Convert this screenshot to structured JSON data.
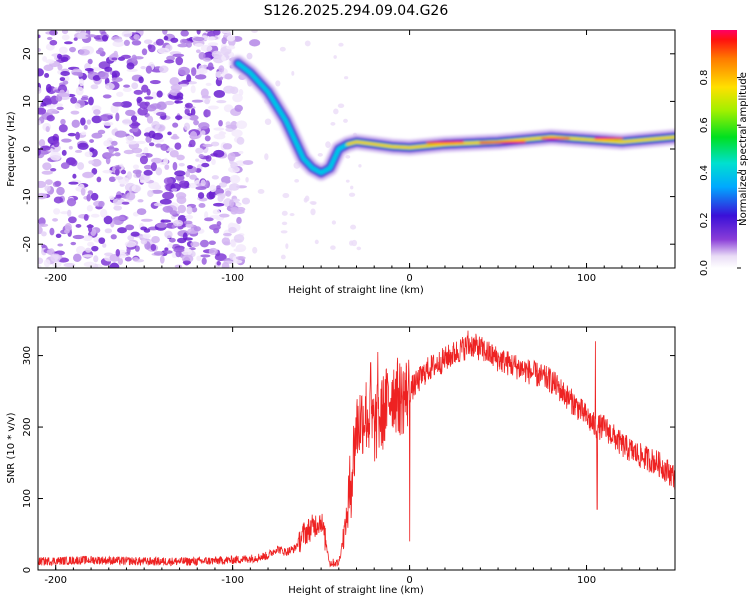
{
  "title": "S126.2025.294.09.04.G26",
  "chart_data": [
    {
      "type": "heatmap",
      "name": "spectrogram",
      "xlabel": "Height of straight line (km)",
      "ylabel": "Frequency (Hz)",
      "xlim": [
        -210,
        150
      ],
      "ylim": [
        -25,
        25
      ],
      "xticks": [
        -200,
        -100,
        0,
        100
      ],
      "yticks": [
        -20,
        -10,
        0,
        10,
        20
      ],
      "colorbar": {
        "label": "Normalized spectral amplitude",
        "range": [
          0,
          1
        ],
        "ticks": [
          0.0,
          0.2,
          0.4,
          0.6,
          0.8
        ]
      },
      "ridge_track": {
        "x": [
          -97,
          -90,
          -80,
          -70,
          -60,
          -55,
          -50,
          -45,
          -40,
          -35,
          -30,
          -20,
          -10,
          0,
          20,
          50,
          80,
          100,
          120,
          150
        ],
        "y": [
          18,
          16,
          12,
          6,
          -2,
          -4,
          -5,
          -4,
          0,
          1,
          1.5,
          1,
          0.5,
          0.3,
          1,
          1.5,
          2.5,
          2,
          1.5,
          2.5
        ]
      },
      "noise_region": {
        "x_from": -210,
        "x_to": -95
      }
    },
    {
      "type": "line",
      "name": "snr",
      "xlabel": "Height of straight line (km)",
      "ylabel": "SNR (10 * v/v)",
      "xlim": [
        -210,
        150
      ],
      "ylim": [
        0,
        340
      ],
      "xticks": [
        -200,
        -100,
        0,
        100
      ],
      "yticks": [
        0,
        100,
        200,
        300
      ],
      "series": [
        {
          "name": "SNR",
          "color": "#ee2222",
          "x": [
            -210,
            -180,
            -150,
            -120,
            -100,
            -90,
            -80,
            -75,
            -70,
            -65,
            -60,
            -55,
            -50,
            -45,
            -40,
            -35,
            -30,
            -25,
            -20,
            -15,
            -10,
            -5,
            0,
            10,
            20,
            30,
            35,
            40,
            50,
            60,
            70,
            80,
            90,
            100,
            105,
            110,
            120,
            130,
            140,
            150
          ],
          "y": [
            12,
            14,
            12,
            12,
            14,
            16,
            20,
            30,
            25,
            30,
            50,
            60,
            70,
            10,
            10,
            80,
            200,
            220,
            200,
            220,
            250,
            240,
            250,
            280,
            295,
            310,
            315,
            310,
            295,
            285,
            275,
            265,
            240,
            215,
            200,
            200,
            175,
            160,
            150,
            130
          ]
        }
      ],
      "spikes": [
        {
          "x": -22,
          "y": 290
        },
        {
          "x": -18,
          "y": 305
        },
        {
          "x": 33,
          "y": 335
        },
        {
          "x": 105,
          "y": 320
        },
        {
          "x": 106,
          "y": 85
        },
        {
          "x": 0,
          "y": 40
        },
        {
          "x": -45,
          "y": 5
        }
      ]
    }
  ]
}
